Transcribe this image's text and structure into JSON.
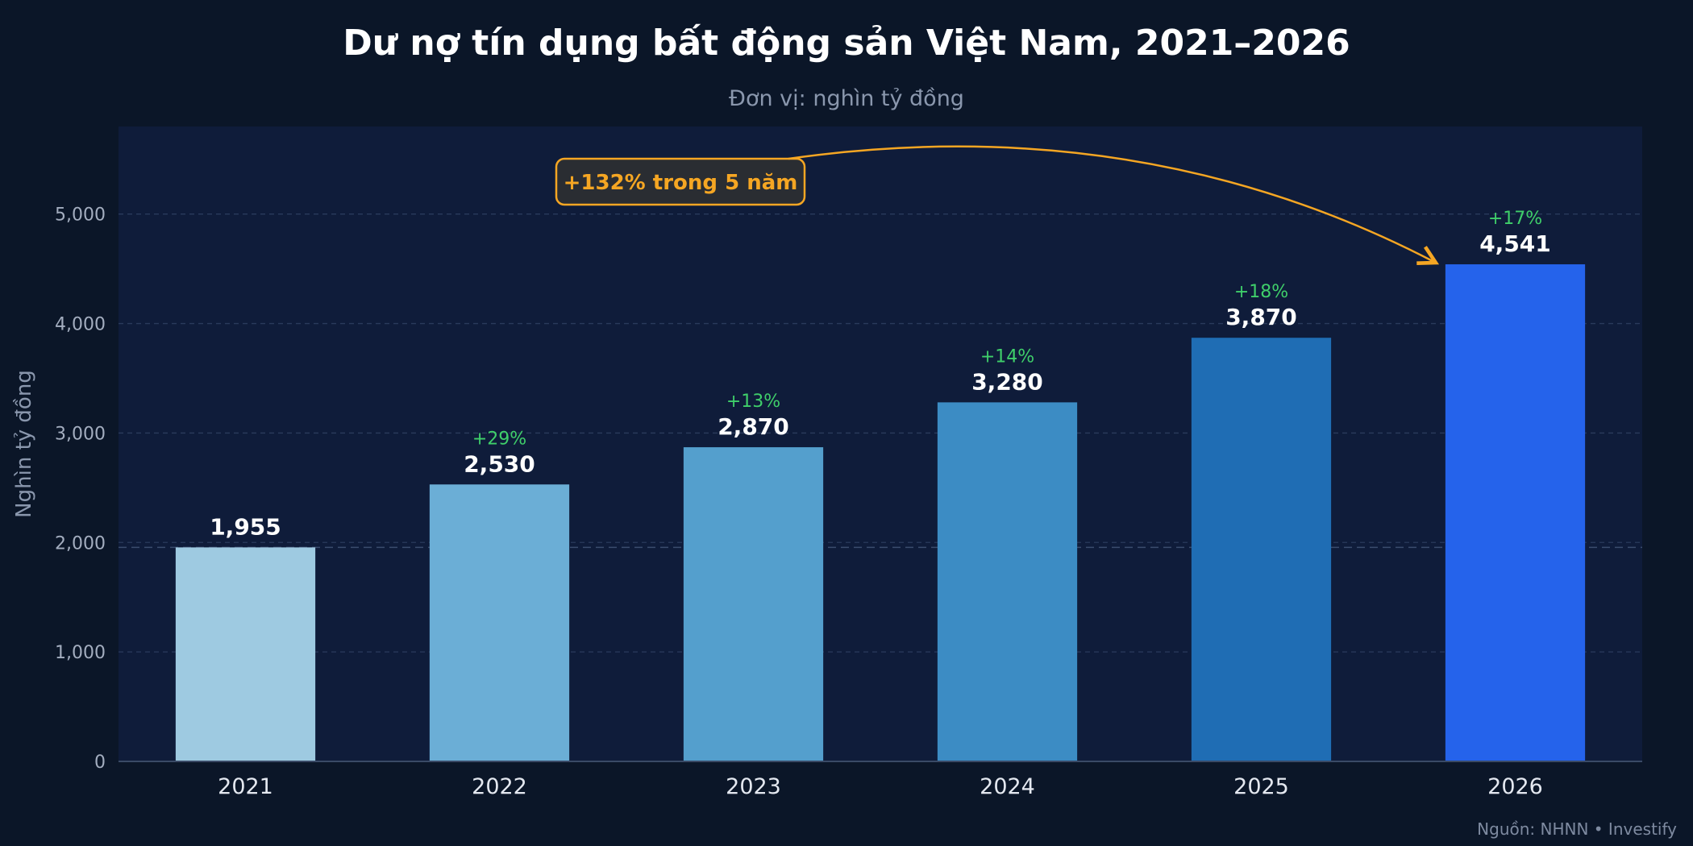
{
  "page": {
    "background": "#0b1628",
    "plot_background": "#0f1c3a",
    "source": "Nguồn: NHNN  •  Investify"
  },
  "chart_data": {
    "type": "bar",
    "title": "Dư nợ tín dụng bất động sản Việt Nam, 2021–2026",
    "subtitle": "Đơn vị: nghìn tỷ đồng",
    "xlabel": "",
    "ylabel": "Nghìn tỷ đồng",
    "categories": [
      "2021",
      "2022",
      "2023",
      "2024",
      "2025",
      "2026"
    ],
    "values": [
      1955,
      2530,
      2870,
      3280,
      3870,
      4541
    ],
    "value_labels": [
      "1,955",
      "2,530",
      "2,870",
      "3,280",
      "3,870",
      "4,541"
    ],
    "growth_labels": [
      "",
      "+29%",
      "+13%",
      "+14%",
      "+18%",
      "+17%"
    ],
    "bar_colors": [
      "#9ecae1",
      "#6baed6",
      "#549fcd",
      "#3c8cc4",
      "#1f6db4",
      "#2563eb"
    ],
    "ylim": [
      0,
      5800
    ],
    "yticks": [
      0,
      1000,
      2000,
      3000,
      4000,
      5000
    ],
    "ytick_labels": [
      "0",
      "1,000",
      "2,000",
      "3,000",
      "4,000",
      "5,000"
    ],
    "grid": true,
    "reference_line": 1955,
    "annotation": {
      "text": "+132% trong 5 năm",
      "color": "#f5a623",
      "target_category": "2026"
    },
    "colors": {
      "title": "#ffffff",
      "subtitle": "#8a97ad",
      "axis_text": "#a3adbf",
      "category_text": "#e4e8f0",
      "value_text": "#ffffff",
      "growth_text": "#3fcf6a",
      "grid": "#2a3a5c"
    }
  }
}
